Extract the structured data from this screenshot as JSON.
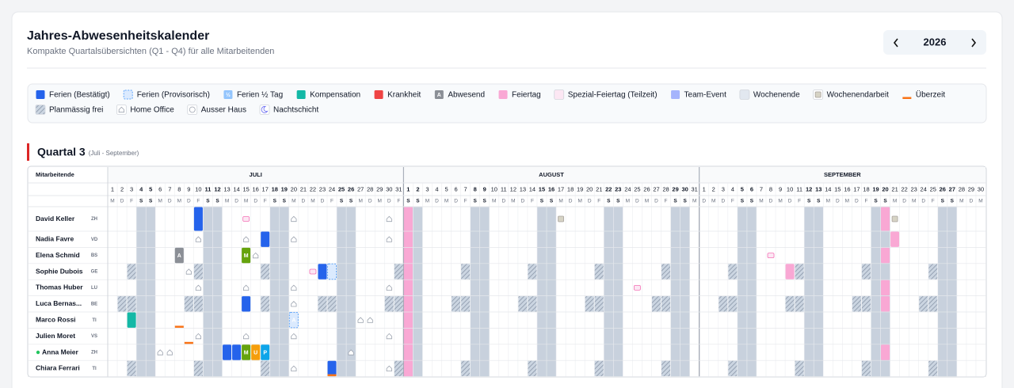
{
  "header": {
    "title": "Jahres-Abwesenheitskalender",
    "subtitle": "Kompakte Quartalsübersichten (Q1 - Q4) für alle Mitarbeitenden",
    "year": "2026"
  },
  "legend": [
    {
      "label": "Ferien (Bestätigt)",
      "color": "#2563eb"
    },
    {
      "label": "Ferien (Provisorisch)",
      "color": "#dbeafe"
    },
    {
      "label": "Ferien ½ Tag",
      "color": "#93c5fd",
      "icon": "½"
    },
    {
      "label": "Kompensation",
      "color": "#14b8a6"
    },
    {
      "label": "Krankheit",
      "color": "#ef4444"
    },
    {
      "label": "Abwesend",
      "color": "#8b8f96",
      "icon": "A"
    },
    {
      "label": "Feiertag",
      "color": "#f9a8d4"
    },
    {
      "label": "Spezial-Feiertag (Teilzeit)",
      "color": "#fce7f3"
    },
    {
      "label": "Team-Event",
      "color": "#a5b4fc"
    },
    {
      "label": "Wochenende",
      "color": "#e2e8f0"
    },
    {
      "label": "Wochenendarbeit",
      "color": "#d6d3c4"
    },
    {
      "label": "Überzeit",
      "color": "#f97316"
    },
    {
      "label": "Planmässig frei",
      "color": "#cbd5e1"
    },
    {
      "label": "Home Office",
      "color": "#9ca3af"
    },
    {
      "label": "Ausser Haus",
      "color": "#9ca3af"
    },
    {
      "label": "Nachtschicht",
      "color": "#6366f1"
    }
  ],
  "quarter": {
    "title": "Quartal 3",
    "range": "(Juli - September)",
    "column_header": "Mitarbeitende",
    "months": [
      {
        "name": "JULI",
        "days": [
          1,
          2,
          3,
          4,
          5,
          6,
          7,
          8,
          9,
          10,
          11,
          12,
          13,
          14,
          15,
          16,
          17,
          18,
          19,
          20,
          21,
          22,
          23,
          24,
          25,
          26,
          27,
          28,
          29,
          30,
          31
        ],
        "weekdays": [
          "M",
          "D",
          "F",
          "S",
          "S",
          "M",
          "D",
          "M",
          "D",
          "F",
          "S",
          "S",
          "M",
          "D",
          "M",
          "D",
          "F",
          "S",
          "S",
          "M",
          "D",
          "M",
          "D",
          "F",
          "S",
          "S",
          "M",
          "D",
          "M",
          "D",
          "F"
        ]
      },
      {
        "name": "AUGUST",
        "days": [
          1,
          2,
          3,
          4,
          5,
          6,
          7,
          8,
          9,
          10,
          11,
          12,
          13,
          14,
          15,
          16,
          17,
          18,
          19,
          20,
          21,
          22,
          23,
          24,
          25,
          26,
          27,
          28,
          29,
          30,
          31
        ],
        "weekdays": [
          "S",
          "S",
          "M",
          "D",
          "M",
          "D",
          "F",
          "S",
          "S",
          "M",
          "D",
          "M",
          "D",
          "F",
          "S",
          "S",
          "M",
          "D",
          "M",
          "D",
          "F",
          "S",
          "S",
          "M",
          "D",
          "M",
          "D",
          "F",
          "S",
          "S",
          "M"
        ]
      },
      {
        "name": "SEPTEMBER",
        "days": [
          1,
          2,
          3,
          4,
          5,
          6,
          7,
          8,
          9,
          10,
          11,
          12,
          13,
          14,
          15,
          16,
          17,
          18,
          19,
          20,
          21,
          22,
          23,
          24,
          25,
          26,
          27,
          28,
          29,
          30
        ],
        "weekdays": [
          "D",
          "M",
          "D",
          "F",
          "S",
          "S",
          "M",
          "D",
          "M",
          "D",
          "F",
          "S",
          "S",
          "M",
          "D",
          "M",
          "D",
          "F",
          "S",
          "S",
          "M",
          "D",
          "M",
          "D",
          "F",
          "S",
          "S",
          "M",
          "D",
          "M"
        ]
      }
    ],
    "holidays": [
      [
        1,
        1,
        6
      ]
    ],
    "employees": [
      {
        "name": "David Keller",
        "code": "ZH",
        "entries": [
          [
            0,
            10,
            0
          ],
          [
            0,
            15,
            7
          ],
          [
            0,
            20,
            13
          ],
          [
            0,
            30,
            13
          ],
          [
            1,
            17,
            10
          ],
          [
            2,
            20,
            6
          ],
          [
            2,
            21,
            10
          ]
        ]
      },
      {
        "name": "Nadia Favre",
        "code": "VD",
        "entries": [
          [
            0,
            10,
            13
          ],
          [
            0,
            15,
            13
          ],
          [
            0,
            17,
            0
          ],
          [
            0,
            20,
            13
          ],
          [
            0,
            30,
            13
          ],
          [
            2,
            21,
            6
          ]
        ]
      },
      {
        "name": "Elena Schmid",
        "code": "BS",
        "entries": [
          [
            0,
            8,
            5,
            "A"
          ],
          [
            0,
            15,
            3,
            "M",
            "#65a30d"
          ],
          [
            0,
            16,
            13
          ],
          [
            2,
            8,
            7
          ],
          [
            2,
            20,
            6
          ]
        ]
      },
      {
        "name": "Sophie Dubois",
        "code": "GE",
        "entries": [
          [
            0,
            3,
            12
          ],
          [
            0,
            9,
            13
          ],
          [
            0,
            10,
            12
          ],
          [
            0,
            17,
            12
          ],
          [
            0,
            22,
            7
          ],
          [
            0,
            23,
            0
          ],
          [
            0,
            24,
            1
          ],
          [
            0,
            31,
            12
          ],
          [
            1,
            7,
            12
          ],
          [
            1,
            14,
            12
          ],
          [
            1,
            21,
            12
          ],
          [
            1,
            28,
            12
          ],
          [
            2,
            4,
            12
          ],
          [
            2,
            10,
            6
          ],
          [
            2,
            11,
            12
          ],
          [
            2,
            18,
            12
          ],
          [
            2,
            25,
            12
          ]
        ]
      },
      {
        "name": "Thomas Huber",
        "code": "LU",
        "entries": [
          [
            0,
            10,
            13
          ],
          [
            0,
            15,
            13
          ],
          [
            0,
            20,
            13
          ],
          [
            0,
            30,
            13
          ],
          [
            1,
            25,
            7
          ],
          [
            2,
            20,
            6
          ]
        ]
      },
      {
        "name": "Luca Bernas...",
        "code": "BE",
        "entries": [
          [
            0,
            2,
            12
          ],
          [
            0,
            3,
            12
          ],
          [
            0,
            9,
            12
          ],
          [
            0,
            10,
            12
          ],
          [
            0,
            15,
            0
          ],
          [
            0,
            17,
            12
          ],
          [
            0,
            20,
            13
          ],
          [
            0,
            23,
            12
          ],
          [
            0,
            24,
            12
          ],
          [
            0,
            30,
            12
          ],
          [
            0,
            31,
            12
          ],
          [
            1,
            6,
            12
          ],
          [
            1,
            7,
            12
          ],
          [
            1,
            13,
            12
          ],
          [
            1,
            14,
            12
          ],
          [
            1,
            20,
            12
          ],
          [
            1,
            21,
            12
          ],
          [
            1,
            27,
            12
          ],
          [
            1,
            28,
            12
          ],
          [
            2,
            3,
            12
          ],
          [
            2,
            4,
            12
          ],
          [
            2,
            10,
            12
          ],
          [
            2,
            11,
            12
          ],
          [
            2,
            17,
            12
          ],
          [
            2,
            18,
            12
          ],
          [
            2,
            20,
            6
          ],
          [
            2,
            24,
            12
          ],
          [
            2,
            25,
            12
          ]
        ]
      },
      {
        "name": "Marco Rossi",
        "code": "TI",
        "entries": [
          [
            0,
            3,
            3
          ],
          [
            0,
            8,
            11
          ],
          [
            0,
            20,
            1,
            "A"
          ],
          [
            0,
            27,
            13
          ],
          [
            0,
            28,
            13
          ]
        ]
      },
      {
        "name": "Julien Moret",
        "code": "VS",
        "entries": [
          [
            0,
            9,
            11
          ],
          [
            0,
            10,
            13
          ],
          [
            0,
            15,
            13
          ],
          [
            0,
            20,
            13
          ],
          [
            0,
            30,
            13
          ]
        ]
      },
      {
        "name": "Anna Meier",
        "code": "ZH",
        "online": true,
        "entries": [
          [
            0,
            6,
            13
          ],
          [
            0,
            7,
            13
          ],
          [
            0,
            13,
            0
          ],
          [
            0,
            14,
            0
          ],
          [
            0,
            15,
            3,
            "M",
            "#65a30d"
          ],
          [
            0,
            16,
            3,
            "U",
            "#f59e0b"
          ],
          [
            0,
            17,
            3,
            "P",
            "#0ea5e9"
          ],
          [
            0,
            26,
            13
          ],
          [
            2,
            20,
            6
          ]
        ]
      },
      {
        "name": "Chiara Ferrari",
        "code": "TI",
        "entries": [
          [
            0,
            3,
            12
          ],
          [
            0,
            10,
            12
          ],
          [
            0,
            17,
            12
          ],
          [
            0,
            20,
            13
          ],
          [
            0,
            24,
            0
          ],
          [
            0,
            24,
            11
          ],
          [
            0,
            30,
            13
          ],
          [
            0,
            31,
            12
          ],
          [
            1,
            7,
            12
          ],
          [
            1,
            14,
            12
          ],
          [
            1,
            21,
            12
          ],
          [
            1,
            28,
            12
          ],
          [
            2,
            4,
            12
          ],
          [
            2,
            11,
            12
          ],
          [
            2,
            18,
            12
          ],
          [
            2,
            25,
            12
          ]
        ]
      }
    ]
  }
}
